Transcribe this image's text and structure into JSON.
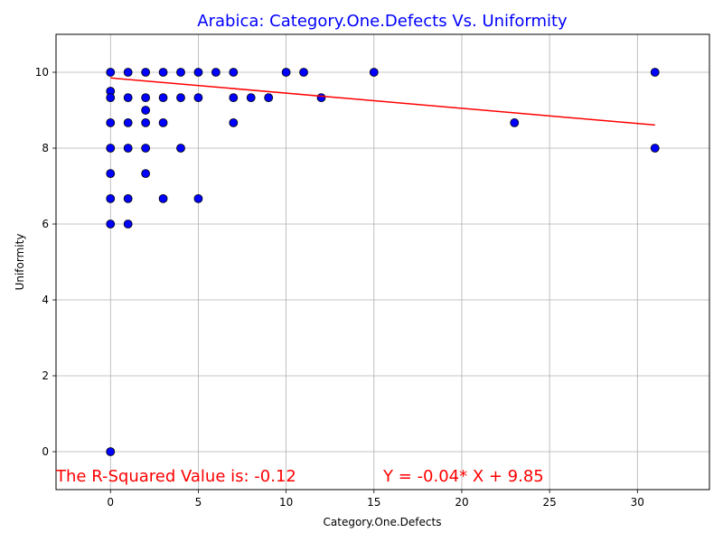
{
  "chart_data": {
    "type": "scatter",
    "title": "Arabica: Category.One.Defects Vs. Uniformity",
    "xlabel": "Category.One.Defects",
    "ylabel": "Uniformity",
    "xlim": [
      -3.1,
      34.1
    ],
    "ylim": [
      -1,
      11
    ],
    "xticks": [
      0,
      5,
      10,
      15,
      20,
      25,
      30
    ],
    "yticks": [
      0,
      2,
      4,
      6,
      8,
      10
    ],
    "grid": true,
    "colors": {
      "title": "#0000ff",
      "points": "#0000ff",
      "point_edge": "#000000",
      "regression": "#ff0000",
      "annotation": "#ff0000",
      "grid": "#b0b0b0"
    },
    "points": [
      {
        "x": 0,
        "y": 10
      },
      {
        "x": 0,
        "y": 9.5
      },
      {
        "x": 0,
        "y": 9.33
      },
      {
        "x": 0,
        "y": 8.67
      },
      {
        "x": 0,
        "y": 8
      },
      {
        "x": 0,
        "y": 7.33
      },
      {
        "x": 0,
        "y": 6.67
      },
      {
        "x": 0,
        "y": 6
      },
      {
        "x": 0,
        "y": 0
      },
      {
        "x": 1,
        "y": 10
      },
      {
        "x": 1,
        "y": 9.33
      },
      {
        "x": 1,
        "y": 8.67
      },
      {
        "x": 1,
        "y": 8
      },
      {
        "x": 1,
        "y": 6.67
      },
      {
        "x": 1,
        "y": 6
      },
      {
        "x": 2,
        "y": 10
      },
      {
        "x": 2,
        "y": 9.33
      },
      {
        "x": 2,
        "y": 9
      },
      {
        "x": 2,
        "y": 8.67
      },
      {
        "x": 2,
        "y": 8
      },
      {
        "x": 2,
        "y": 7.33
      },
      {
        "x": 3,
        "y": 10
      },
      {
        "x": 3,
        "y": 9.33
      },
      {
        "x": 3,
        "y": 8.67
      },
      {
        "x": 3,
        "y": 6.67
      },
      {
        "x": 4,
        "y": 10
      },
      {
        "x": 4,
        "y": 9.33
      },
      {
        "x": 4,
        "y": 8
      },
      {
        "x": 5,
        "y": 10
      },
      {
        "x": 5,
        "y": 9.33
      },
      {
        "x": 5,
        "y": 6.67
      },
      {
        "x": 6,
        "y": 10
      },
      {
        "x": 7,
        "y": 10
      },
      {
        "x": 7,
        "y": 9.33
      },
      {
        "x": 7,
        "y": 8.67
      },
      {
        "x": 8,
        "y": 9.33
      },
      {
        "x": 9,
        "y": 9.33
      },
      {
        "x": 10,
        "y": 10
      },
      {
        "x": 11,
        "y": 10
      },
      {
        "x": 12,
        "y": 9.33
      },
      {
        "x": 15,
        "y": 10
      },
      {
        "x": 23,
        "y": 8.67
      },
      {
        "x": 31,
        "y": 10
      },
      {
        "x": 31,
        "y": 8
      }
    ],
    "regression": {
      "slope": -0.04,
      "intercept": 9.85,
      "x_range": [
        0,
        31
      ]
    },
    "annotations": {
      "r_squared": "The R-Squared Value is: -0.12",
      "equation": "Y = -0.04* X + 9.85"
    }
  }
}
